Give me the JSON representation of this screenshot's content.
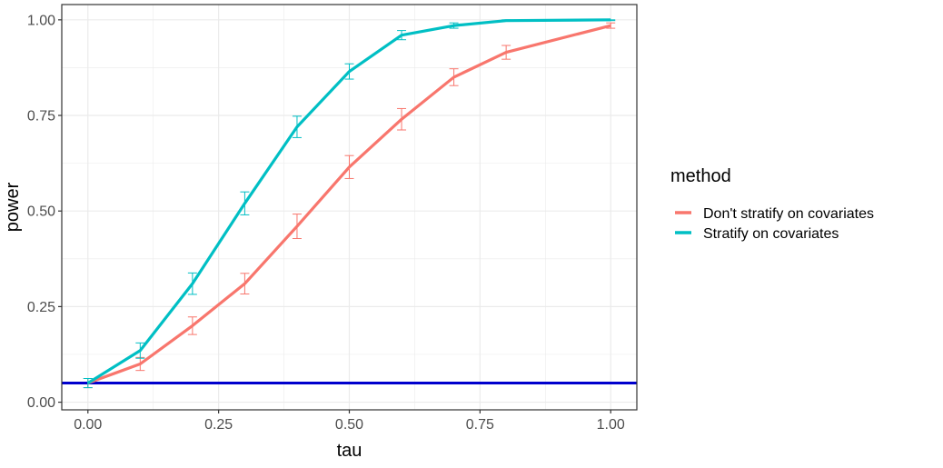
{
  "chart_data": {
    "type": "line",
    "xlabel": "tau",
    "ylabel": "power",
    "xlim": [
      -0.05,
      1.05
    ],
    "ylim": [
      -0.02,
      1.04
    ],
    "x_ticks": [
      0,
      0.25,
      0.5,
      0.75,
      1
    ],
    "x_tick_labels": [
      "0.00",
      "0.25",
      "0.50",
      "0.75",
      "1.00"
    ],
    "y_ticks": [
      0,
      0.25,
      0.5,
      0.75,
      1
    ],
    "y_tick_labels": [
      "0.00",
      "0.25",
      "0.50",
      "0.75",
      "1.00"
    ],
    "grid": true,
    "legend": {
      "title": "method",
      "position": "right"
    },
    "x": [
      0,
      0.1,
      0.2,
      0.3,
      0.4,
      0.5,
      0.6,
      0.7,
      0.8,
      1.0
    ],
    "series": [
      {
        "name": "Don't stratify on covariates",
        "color": "#F8766D",
        "values": [
          0.05,
          0.1,
          0.2,
          0.31,
          0.46,
          0.615,
          0.74,
          0.85,
          0.915,
          0.985
        ],
        "err_low": [
          0.038,
          0.083,
          0.177,
          0.283,
          0.428,
          0.585,
          0.712,
          0.828,
          0.897,
          0.978
        ],
        "err_high": [
          0.062,
          0.117,
          0.223,
          0.337,
          0.492,
          0.645,
          0.768,
          0.872,
          0.933,
          0.992
        ]
      },
      {
        "name": "Stratify on covariates",
        "color": "#00BFC4",
        "values": [
          0.05,
          0.135,
          0.31,
          0.52,
          0.72,
          0.865,
          0.96,
          0.985,
          0.998,
          1.0
        ],
        "err_low": [
          0.038,
          0.115,
          0.282,
          0.49,
          0.692,
          0.845,
          0.948,
          0.978,
          0.996,
          0.998
        ],
        "err_high": [
          0.062,
          0.155,
          0.338,
          0.55,
          0.748,
          0.885,
          0.972,
          0.992,
          1.0,
          1.0
        ]
      }
    ],
    "hline": {
      "y": 0.05,
      "color": "#0000CD"
    }
  }
}
